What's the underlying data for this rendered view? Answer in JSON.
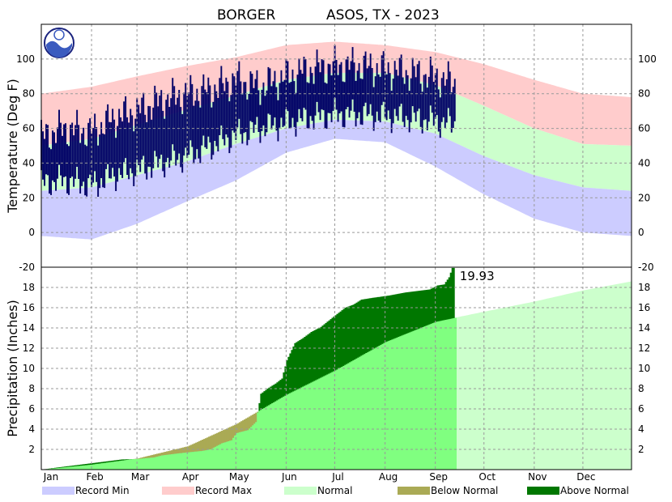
{
  "chart_data": {
    "title_station": "BORGER",
    "title_network_year": "ASOS, TX - 2023",
    "months": [
      "Jan",
      "Feb",
      "Mar",
      "Apr",
      "May",
      "Jun",
      "Jul",
      "Aug",
      "Sep",
      "Oct",
      "Nov",
      "Dec"
    ],
    "legend": [
      {
        "label": "Record Min",
        "color": "#ccccff"
      },
      {
        "label": "Record Max",
        "color": "#ffcccc"
      },
      {
        "label": "Normal",
        "color": "#ccffcc"
      },
      {
        "label": "Below Normal",
        "color": "#aaaa55"
      },
      {
        "label": "Above Normal",
        "color": "#007700"
      }
    ],
    "colors": {
      "record_min": "#ccccff",
      "record_max": "#ffcccc",
      "normal": "#ccffcc",
      "observed": "#000066",
      "precip_normal_past": "#80ff80",
      "precip_normal_future": "#ccffcc",
      "below_normal": "#aaaa55",
      "above_normal": "#007700",
      "grid": "#999999"
    },
    "temperature": {
      "type": "area",
      "ylabel": "Temperature (Deg F)",
      "ylim": [
        -20,
        120
      ],
      "yticks": [
        -20,
        0,
        20,
        40,
        60,
        80,
        100
      ],
      "observed_through_day": 256,
      "normal_high": [
        [
          1,
          50
        ],
        [
          32,
          54
        ],
        [
          60,
          62
        ],
        [
          91,
          71
        ],
        [
          121,
          79
        ],
        [
          152,
          88
        ],
        [
          182,
          92
        ],
        [
          213,
          92
        ],
        [
          244,
          85
        ],
        [
          274,
          73
        ],
        [
          305,
          60
        ],
        [
          335,
          51
        ],
        [
          365,
          50
        ]
      ],
      "normal_low": [
        [
          1,
          24
        ],
        [
          32,
          26
        ],
        [
          60,
          33
        ],
        [
          91,
          41
        ],
        [
          121,
          51
        ],
        [
          152,
          60
        ],
        [
          182,
          65
        ],
        [
          213,
          64
        ],
        [
          244,
          57
        ],
        [
          274,
          44
        ],
        [
          305,
          33
        ],
        [
          335,
          26
        ],
        [
          365,
          24
        ]
      ],
      "record_high": [
        [
          1,
          80
        ],
        [
          32,
          84
        ],
        [
          60,
          90
        ],
        [
          91,
          96
        ],
        [
          121,
          101
        ],
        [
          152,
          108
        ],
        [
          182,
          110
        ],
        [
          213,
          108
        ],
        [
          244,
          104
        ],
        [
          274,
          97
        ],
        [
          305,
          88
        ],
        [
          335,
          80
        ],
        [
          365,
          78
        ]
      ],
      "record_low": [
        [
          1,
          -2
        ],
        [
          32,
          -4
        ],
        [
          60,
          5
        ],
        [
          91,
          18
        ],
        [
          121,
          30
        ],
        [
          152,
          46
        ],
        [
          182,
          54
        ],
        [
          213,
          52
        ],
        [
          244,
          38
        ],
        [
          274,
          22
        ],
        [
          305,
          8
        ],
        [
          335,
          0
        ],
        [
          365,
          -2
        ]
      ],
      "observed_high": [
        [
          1,
          55
        ],
        [
          15,
          60
        ],
        [
          32,
          58
        ],
        [
          46,
          66
        ],
        [
          60,
          70
        ],
        [
          75,
          76
        ],
        [
          91,
          80
        ],
        [
          106,
          82
        ],
        [
          121,
          88
        ],
        [
          136,
          84
        ],
        [
          152,
          90
        ],
        [
          167,
          94
        ],
        [
          182,
          96
        ],
        [
          197,
          96
        ],
        [
          213,
          94
        ],
        [
          228,
          92
        ],
        [
          244,
          90
        ],
        [
          256,
          86
        ]
      ],
      "observed_low": [
        [
          1,
          28
        ],
        [
          15,
          30
        ],
        [
          32,
          27
        ],
        [
          46,
          33
        ],
        [
          60,
          36
        ],
        [
          75,
          40
        ],
        [
          91,
          44
        ],
        [
          106,
          50
        ],
        [
          121,
          56
        ],
        [
          136,
          60
        ],
        [
          152,
          63
        ],
        [
          167,
          66
        ],
        [
          182,
          68
        ],
        [
          197,
          68
        ],
        [
          213,
          67
        ],
        [
          228,
          66
        ],
        [
          244,
          64
        ],
        [
          256,
          62
        ]
      ]
    },
    "precipitation": {
      "type": "area",
      "ylabel": "Precipitation (Inches)",
      "ylim": [
        0,
        20
      ],
      "yticks": [
        2,
        4,
        6,
        8,
        10,
        12,
        14,
        16,
        18
      ],
      "annotation": "19.93",
      "observed_total": 19.93,
      "observed_through_day": 256,
      "normal_cumulative": [
        [
          1,
          0.0
        ],
        [
          32,
          0.5
        ],
        [
          60,
          1.1
        ],
        [
          91,
          2.3
        ],
        [
          121,
          4.5
        ],
        [
          152,
          7.4
        ],
        [
          182,
          9.8
        ],
        [
          213,
          12.6
        ],
        [
          244,
          14.6
        ],
        [
          274,
          15.6
        ],
        [
          305,
          16.6
        ],
        [
          335,
          17.7
        ],
        [
          365,
          18.6
        ]
      ],
      "observed_cumulative": [
        [
          1,
          0.0
        ],
        [
          10,
          0.2
        ],
        [
          20,
          0.4
        ],
        [
          30,
          0.6
        ],
        [
          40,
          0.8
        ],
        [
          50,
          1.0
        ],
        [
          60,
          1.05
        ],
        [
          70,
          1.2
        ],
        [
          75,
          1.4
        ],
        [
          85,
          1.6
        ],
        [
          91,
          1.7
        ],
        [
          100,
          1.85
        ],
        [
          105,
          2.0
        ],
        [
          112,
          2.6
        ],
        [
          118,
          2.9
        ],
        [
          121,
          3.6
        ],
        [
          128,
          3.9
        ],
        [
          133,
          4.7
        ],
        [
          136,
          7.5
        ],
        [
          140,
          8.0
        ],
        [
          145,
          8.5
        ],
        [
          149,
          9.0
        ],
        [
          152,
          10.8
        ],
        [
          157,
          12.5
        ],
        [
          162,
          13.0
        ],
        [
          167,
          13.6
        ],
        [
          173,
          14.1
        ],
        [
          180,
          15.0
        ],
        [
          188,
          16.0
        ],
        [
          193,
          16.3
        ],
        [
          198,
          16.8
        ],
        [
          206,
          17.0
        ],
        [
          215,
          17.2
        ],
        [
          225,
          17.5
        ],
        [
          235,
          17.7
        ],
        [
          240,
          17.8
        ],
        [
          245,
          18.2
        ],
        [
          249,
          18.3
        ],
        [
          252,
          19.0
        ],
        [
          254,
          19.93
        ],
        [
          256,
          19.93
        ]
      ]
    }
  }
}
